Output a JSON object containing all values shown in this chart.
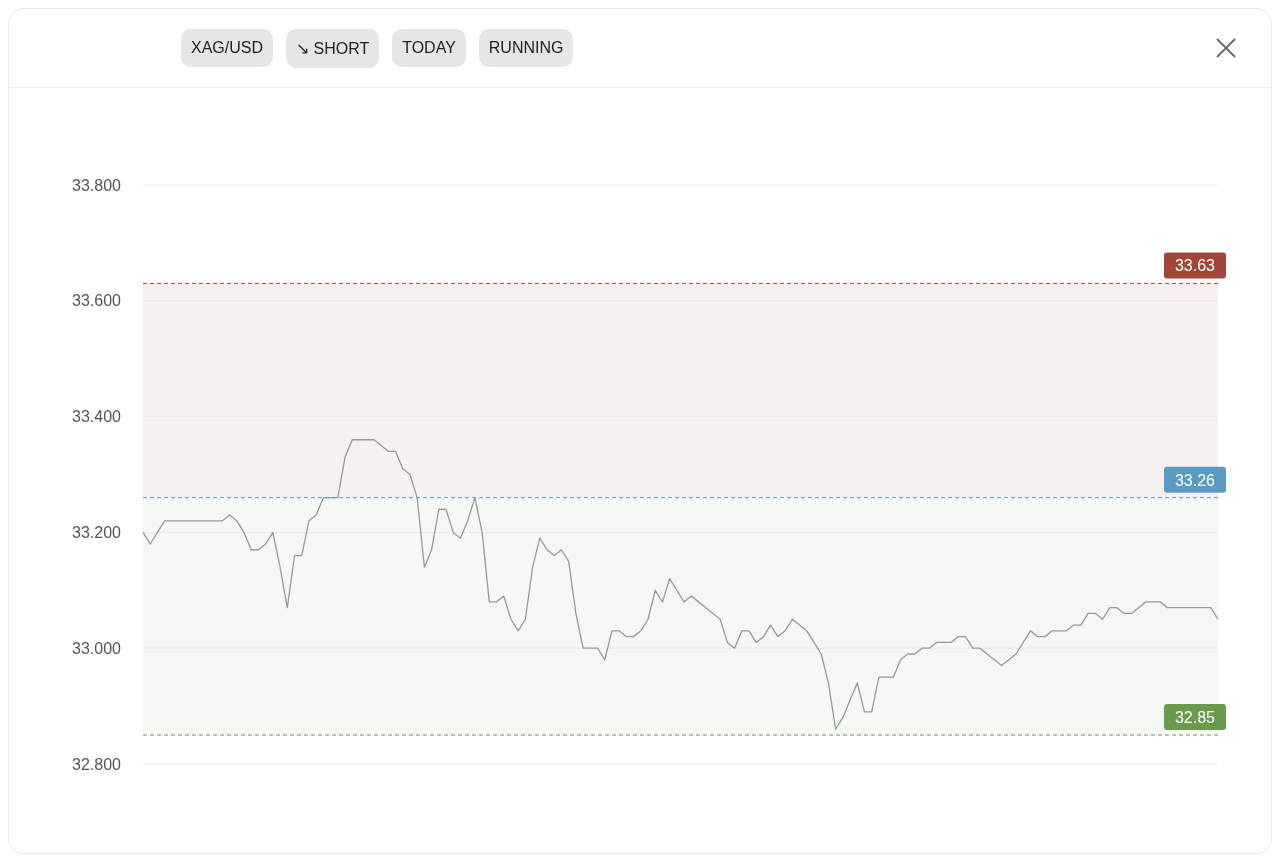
{
  "chart_data": {
    "type": "line",
    "annotations": [
      "XAG/USD",
      "↘ SHORT",
      "TODAY",
      "RUNNING"
    ],
    "categories": [
      null,
      null,
      null,
      null,
      null,
      null,
      null,
      null,
      null,
      null,
      null,
      null,
      null,
      null,
      null,
      null,
      null,
      null,
      null,
      null,
      null,
      null,
      null,
      null,
      null,
      null,
      null,
      null,
      null,
      null,
      null,
      null,
      null,
      null,
      null,
      null,
      null,
      null,
      null,
      null,
      null,
      null,
      null,
      null,
      null,
      null,
      null,
      null,
      null,
      null,
      null,
      null,
      null,
      null,
      null,
      null,
      null,
      null,
      null,
      null,
      null,
      null,
      null,
      null,
      null,
      null,
      null,
      null,
      null,
      null,
      null,
      null,
      null,
      null,
      null,
      null,
      null,
      null,
      null,
      null,
      null,
      null,
      null,
      null,
      null,
      null,
      null,
      null,
      null,
      null,
      null,
      null,
      null,
      null,
      null,
      null,
      null,
      null,
      null,
      null,
      null,
      null,
      null,
      null,
      null,
      null,
      null,
      null,
      null,
      null,
      null,
      null,
      null,
      null,
      null,
      null,
      null,
      null,
      null,
      null,
      null,
      null,
      null,
      null,
      null,
      null,
      null,
      null,
      null,
      null,
      null,
      null,
      null,
      null,
      null,
      null,
      null,
      null,
      null,
      null,
      null,
      null,
      null,
      null,
      null,
      null,
      null,
      null,
      null,
      null
    ],
    "series": [
      {
        "color": "#999999",
        "values": [
          33.2,
          33.18,
          33.2,
          33.22,
          33.22,
          33.22,
          33.22,
          33.22,
          33.22,
          33.22,
          33.22,
          33.22,
          33.23,
          33.22,
          33.2,
          33.17,
          33.17,
          33.18,
          33.2,
          33.14,
          33.07,
          33.16,
          33.16,
          33.22,
          33.23,
          33.26,
          33.26,
          33.26,
          33.33,
          33.36,
          33.36,
          33.36,
          33.36,
          33.35,
          33.34,
          33.34,
          33.31,
          33.3,
          33.26,
          33.14,
          33.17,
          33.24,
          33.24,
          33.2,
          33.19,
          33.22,
          33.26,
          33.2,
          33.08,
          33.08,
          33.09,
          33.05,
          33.03,
          33.05,
          33.14,
          33.19,
          33.17,
          33.16,
          33.17,
          33.15,
          33.06,
          33.0,
          33.0,
          33.0,
          32.98,
          33.03,
          33.03,
          33.02,
          33.02,
          33.03,
          33.05,
          33.1,
          33.08,
          33.12,
          33.1,
          33.08,
          33.09,
          33.08,
          33.07,
          33.06,
          33.05,
          33.01,
          33.0,
          33.03,
          33.03,
          33.01,
          33.02,
          33.04,
          33.02,
          33.03,
          33.05,
          33.04,
          33.03,
          33.01,
          32.99,
          32.94,
          32.86,
          32.88,
          32.91,
          32.94,
          32.89,
          32.89,
          32.95,
          32.95,
          32.95,
          32.98,
          32.99,
          32.99,
          33.0,
          33.0,
          33.01,
          33.01,
          33.01,
          33.02,
          33.02,
          33.0,
          33.0,
          32.99,
          32.98,
          32.97,
          32.98,
          32.99,
          33.01,
          33.03,
          33.02,
          33.02,
          33.03,
          33.03,
          33.03,
          33.04,
          33.04,
          33.06,
          33.06,
          33.05,
          33.07,
          33.07,
          33.06,
          33.06,
          33.07,
          33.08,
          33.08,
          33.08,
          33.07,
          33.07,
          33.07,
          33.07,
          33.07,
          33.07,
          33.07,
          33.05
        ]
      }
    ],
    "ylim": [
      32.8,
      33.8
    ],
    "yticks": [
      {
        "value": 32.8,
        "label": "32.800"
      },
      {
        "value": 33.0,
        "label": "33.000"
      },
      {
        "value": 33.2,
        "label": "33.200"
      },
      {
        "value": 33.4,
        "label": "33.400"
      },
      {
        "value": 33.6,
        "label": "33.600"
      },
      {
        "value": 33.8,
        "label": "33.800"
      }
    ],
    "tick_labels": "y",
    "grid": "y",
    "marker": "none",
    "line_style": "solid",
    "legend": false,
    "ref_lines": [
      {
        "axis": "y",
        "value": 33.63,
        "label": "33.63",
        "color": "#a0473a",
        "line_style": "dashed"
      },
      {
        "axis": "y",
        "value": 33.26,
        "label": "33.26",
        "color": "#5a9bc4",
        "line_style": "dashed"
      },
      {
        "axis": "y",
        "value": 32.85,
        "label": "32.85",
        "color": "#6a9a4c",
        "line_style": "dashed"
      }
    ],
    "bands": [
      {
        "axis": "y",
        "from": 33.26,
        "to": 33.63,
        "color": "#f7f0f0"
      },
      {
        "axis": "y",
        "from": 32.85,
        "to": 33.26,
        "color": "#f4f7f3"
      }
    ]
  }
}
